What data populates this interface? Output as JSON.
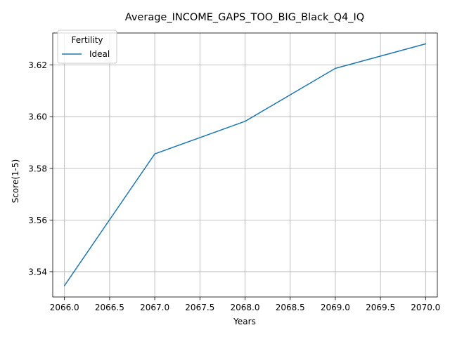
{
  "chart_data": {
    "type": "line",
    "title": "Average_INCOME_GAPS_TOO_BIG_Black_Q4_IQ",
    "xlabel": "Years",
    "ylabel": "Score(1-5)",
    "xlim": [
      2065.87,
      2070.13
    ],
    "ylim": [
      3.5302,
      3.6324
    ],
    "xticks": [
      2066.0,
      2066.5,
      2067.0,
      2067.5,
      2068.0,
      2068.5,
      2069.0,
      2069.5,
      2070.0
    ],
    "xtick_labels": [
      "2066.0",
      "2066.5",
      "2067.0",
      "2067.5",
      "2068.0",
      "2068.5",
      "2069.0",
      "2069.5",
      "2070.0"
    ],
    "yticks": [
      3.54,
      3.56,
      3.58,
      3.6,
      3.62
    ],
    "ytick_labels": [
      "3.54",
      "3.56",
      "3.58",
      "3.60",
      "3.62"
    ],
    "grid": true,
    "legend": {
      "title": "Fertility",
      "placement": "top-left"
    },
    "series": [
      {
        "name": "Ideal",
        "color": "#1f77b4",
        "x": [
          2066,
          2067,
          2068,
          2069,
          2070
        ],
        "y": [
          3.5346,
          3.5856,
          3.5982,
          3.6187,
          3.6282
        ]
      }
    ]
  }
}
